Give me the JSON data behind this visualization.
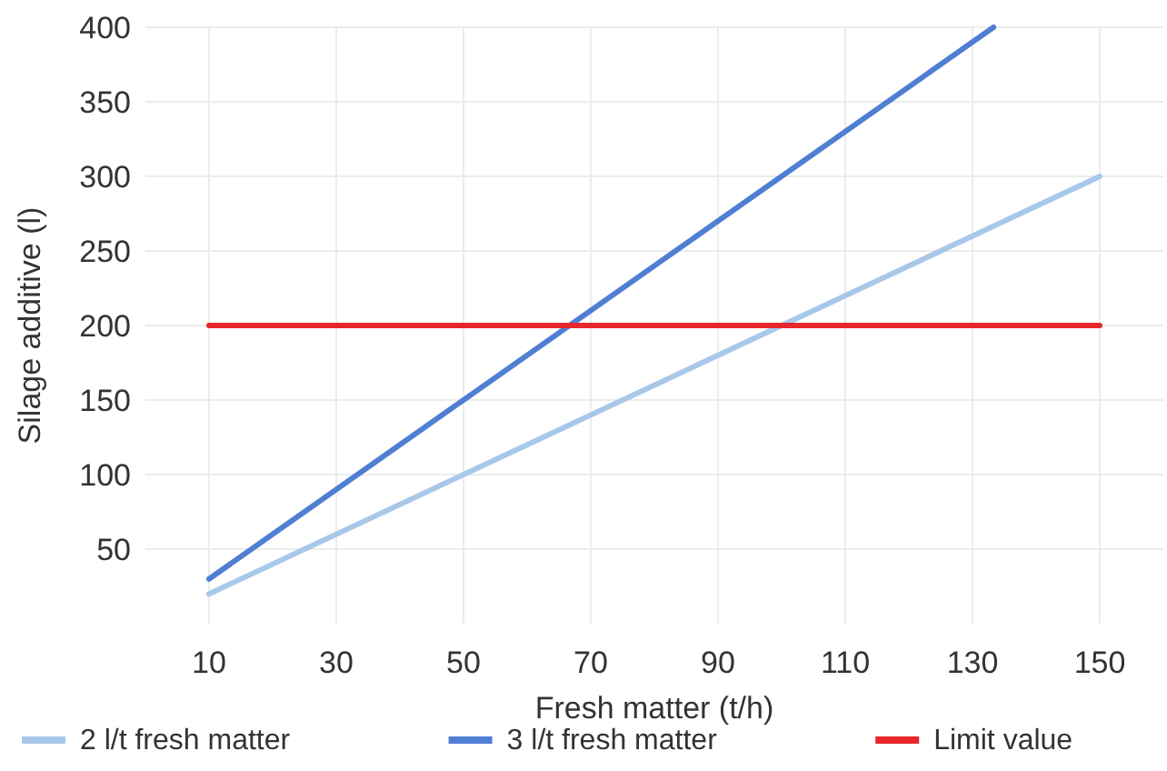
{
  "chart_data": {
    "type": "line",
    "xlabel": "Fresh matter (t/h)",
    "ylabel": "Silage additive (l)",
    "xlim": [
      0,
      160
    ],
    "xticks": [
      10,
      30,
      50,
      70,
      90,
      110,
      130,
      150
    ],
    "ylim": [
      0,
      400
    ],
    "yticks": [
      50,
      100,
      150,
      200,
      250,
      300,
      350,
      400
    ],
    "grid": true,
    "legend": "bottom",
    "marker": "none",
    "line_style": "solid",
    "series": [
      {
        "name": "2 l/t fresh matter",
        "color": "#a8c8ea",
        "x": [
          10,
          150
        ],
        "values": [
          20,
          300
        ]
      },
      {
        "name": "3 l/t fresh matter",
        "color": "#4f7fd3",
        "x": [
          10,
          133.3
        ],
        "values": [
          30,
          400
        ]
      },
      {
        "name": "Limit value",
        "color": "#e8262b",
        "x": [
          10,
          150
        ],
        "values": [
          200,
          200
        ]
      }
    ]
  }
}
